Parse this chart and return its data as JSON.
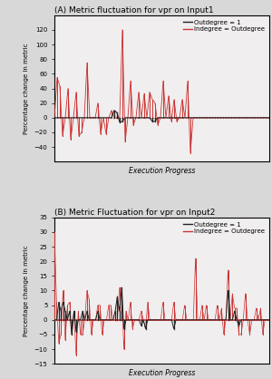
{
  "title_A": "(A) Metric fluctuation for vpr on Input1",
  "title_B": "(B) Metric Fluctuation for vpr on Input2",
  "xlabel": "Execution Progress",
  "ylabel": "Percentage change in metric",
  "legend_black": "Outdegree = 1",
  "legend_red": "Indegree = Outdegree",
  "ylim_A": [
    -60,
    140
  ],
  "ylim_B": [
    -15,
    35
  ],
  "yticks_A": [
    -40,
    -20,
    0,
    20,
    40,
    60,
    80,
    100,
    120
  ],
  "yticks_B": [
    -15,
    -10,
    -5,
    0,
    5,
    10,
    15,
    20,
    25,
    30,
    35
  ],
  "bg_color": "#d8d8d8",
  "plot_bg": "#f0eeee",
  "black_color": "#222222",
  "red_color": "#cc3333",
  "red_A": [
    0,
    55,
    43,
    -25,
    0,
    40,
    -30,
    0,
    35,
    -25,
    -20,
    0,
    75,
    0,
    0,
    0,
    20,
    -22,
    0,
    -22,
    0,
    10,
    0,
    0,
    0,
    120,
    -33,
    0,
    50,
    -10,
    0,
    35,
    0,
    33,
    0,
    35,
    25,
    20,
    -10,
    0,
    50,
    0,
    30,
    -5,
    25,
    -5,
    0,
    25,
    0,
    50,
    -48,
    0,
    0,
    0,
    0,
    0,
    0,
    0,
    0,
    0,
    0,
    0,
    0,
    0,
    0,
    0,
    0,
    0,
    0,
    0,
    0,
    0,
    0,
    0,
    0,
    0,
    0,
    0,
    0,
    0
  ],
  "black_A": [
    0,
    0,
    0,
    0,
    0,
    0,
    0,
    0,
    0,
    0,
    0,
    0,
    0,
    0,
    0,
    0,
    0,
    0,
    0,
    0,
    0,
    0,
    10,
    7,
    -6,
    -5,
    0,
    0,
    0,
    0,
    0,
    0,
    0,
    0,
    0,
    0,
    -5,
    -5,
    0,
    0,
    0,
    0,
    0,
    0,
    0,
    0,
    0,
    0,
    0,
    0,
    0,
    0,
    0,
    0,
    0,
    0,
    0,
    0,
    0,
    0,
    0,
    0,
    0,
    0,
    0,
    0,
    0,
    0,
    0,
    0,
    0,
    0,
    0,
    0,
    0,
    0,
    0,
    0,
    0,
    0
  ],
  "red_B": [
    30,
    6,
    -8,
    -5,
    10,
    -7,
    5,
    6,
    -5,
    3,
    -12,
    3,
    -5,
    -5,
    0,
    10,
    7,
    -5,
    0,
    0,
    5,
    5,
    -5,
    0,
    0,
    5,
    5,
    0,
    0,
    0,
    11,
    11,
    -10,
    3,
    0,
    6,
    -3,
    0,
    0,
    0,
    3,
    0,
    -3,
    6,
    0,
    0,
    0,
    0,
    0,
    0,
    6,
    0,
    0,
    0,
    0,
    6,
    0,
    0,
    0,
    0,
    5,
    0,
    0,
    0,
    0,
    21,
    0,
    0,
    5,
    0,
    5,
    0,
    0,
    0,
    0,
    5,
    0,
    4,
    -5,
    0,
    17,
    0,
    9,
    4,
    4,
    -5,
    -5,
    0,
    9,
    0,
    -5,
    0,
    0,
    4,
    0,
    4,
    -5,
    0,
    0,
    0
  ],
  "black_B": [
    0,
    0,
    6,
    3,
    6,
    3,
    0,
    3,
    -5,
    3,
    -4,
    0,
    0,
    3,
    0,
    3,
    0,
    0,
    0,
    0,
    3,
    0,
    0,
    0,
    0,
    0,
    0,
    0,
    3,
    8,
    3,
    11,
    -3,
    0,
    0,
    0,
    0,
    0,
    0,
    0,
    -2,
    0,
    -3,
    0,
    0,
    0,
    0,
    0,
    0,
    0,
    0,
    0,
    0,
    0,
    0,
    -3,
    0,
    0,
    0,
    0,
    0,
    0,
    0,
    0,
    0,
    0,
    0,
    0,
    0,
    0,
    0,
    0,
    0,
    0,
    0,
    0,
    0,
    0,
    0,
    0,
    10,
    0,
    0,
    3,
    0,
    -2,
    0,
    0,
    0,
    0,
    0,
    0,
    0,
    0,
    0,
    0,
    0,
    0,
    0,
    0
  ]
}
